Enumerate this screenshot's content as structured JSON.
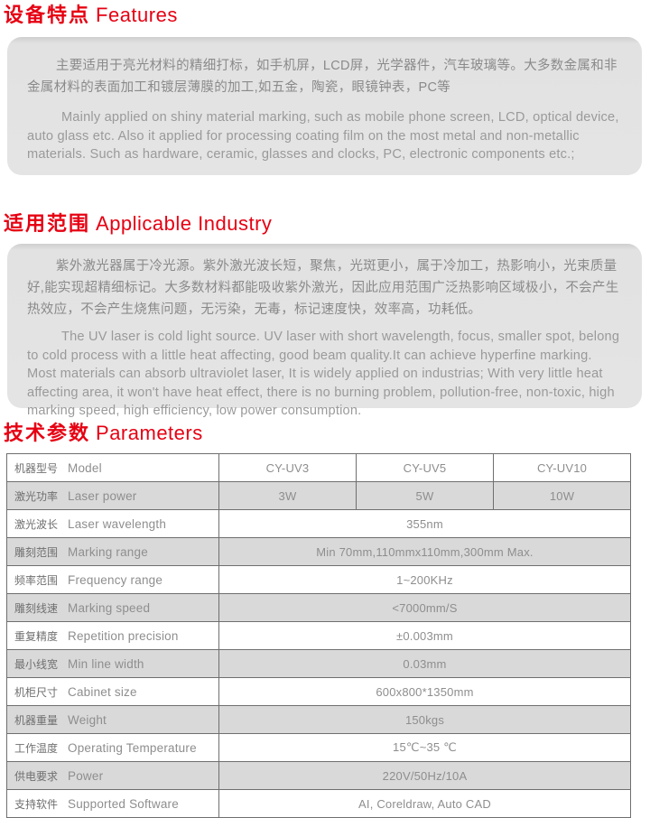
{
  "accent_red": "#e60012",
  "panel_gray": "#e4e4e4",
  "row_alt_gray": "#d9d9d9",
  "sections": {
    "features": {
      "title_zh": "设备特点",
      "title_en": "Features",
      "para_zh": "主要适用于亮光材料的精细打标，如手机屏，LCD屏，光学器件，汽车玻璃等。大多数金属和非金属材料的表面加工和镀层薄膜的加工,如五金，陶瓷，眼镜钟表，PC等",
      "para_en": "Mainly applied on shiny material marking, such as mobile phone screen, LCD, optical device, auto glass etc. Also it applied for processing coating film on the most metal and non-metallic materials. Such as hardware, ceramic, glasses and clocks, PC, electronic components etc.;"
    },
    "industry": {
      "title_zh": "适用范围",
      "title_en": "Applicable Industry",
      "para_zh": "紫外激光器属于冷光源。紫外激光波长短，聚焦，光斑更小，属于冷加工，热影响小，光束质量好,能实现超精细标记。大多数材料都能吸收紫外激光，因此应用范围广泛热影响区域极小，不会产生热效应，不会产生烧焦问题，无污染，无毒，标记速度快，效率高，功耗低。",
      "para_en": "The UV laser is  cold light source. UV  laser with short wavelength, focus, smaller spot, belong to cold process with a little heat affecting, good beam quality.It can achieve hyperfine marking. Most materials can absorb ultraviolet laser, It is widely applied on industrias; With very little heat affecting area, it won't have heat effect, there is no burning problem, pollution-free, non-toxic, high marking speed, high efficiency,  low power consumption."
    },
    "parameters": {
      "title_zh": "技术参数",
      "title_en": "Parameters"
    }
  },
  "table": {
    "rows": [
      {
        "label_zh": "机器型号",
        "label_en": "Model",
        "values": [
          "CY-UV3",
          "CY-UV5",
          "CY-UV10"
        ]
      },
      {
        "label_zh": "激光功率",
        "label_en": "Laser power",
        "values": [
          "3W",
          "5W",
          "10W"
        ]
      },
      {
        "label_zh": "激光波长",
        "label_en": "Laser wavelength",
        "value": "355nm"
      },
      {
        "label_zh": "雕刻范围",
        "label_en": "Marking range",
        "value": "Min 70mm,110mmx110mm,300mm Max."
      },
      {
        "label_zh": "频率范围",
        "label_en": "Frequency range",
        "value": "1~200KHz"
      },
      {
        "label_zh": "雕刻线速",
        "label_en": "Marking speed",
        "value": "<7000mm/S"
      },
      {
        "label_zh": "重复精度",
        "label_en": "Repetition precision",
        "value": "±0.003mm"
      },
      {
        "label_zh": "最小线宽",
        "label_en": "Min line width",
        "value": "0.03mm"
      },
      {
        "label_zh": "机柜尺寸",
        "label_en": "Cabinet size",
        "value": "600x800*1350mm"
      },
      {
        "label_zh": "机器重量",
        "label_en": "Weight",
        "value": "150kgs"
      },
      {
        "label_zh": "工作温度",
        "label_en": "Operating Temperature",
        "value": "15℃~35 ℃"
      },
      {
        "label_zh": "供电要求",
        "label_en": "Power",
        "value": "220V/50Hz/10A"
      },
      {
        "label_zh": "支持软件",
        "label_en": "Supported Software",
        "value": "AI, Coreldraw, Auto CAD"
      }
    ]
  }
}
